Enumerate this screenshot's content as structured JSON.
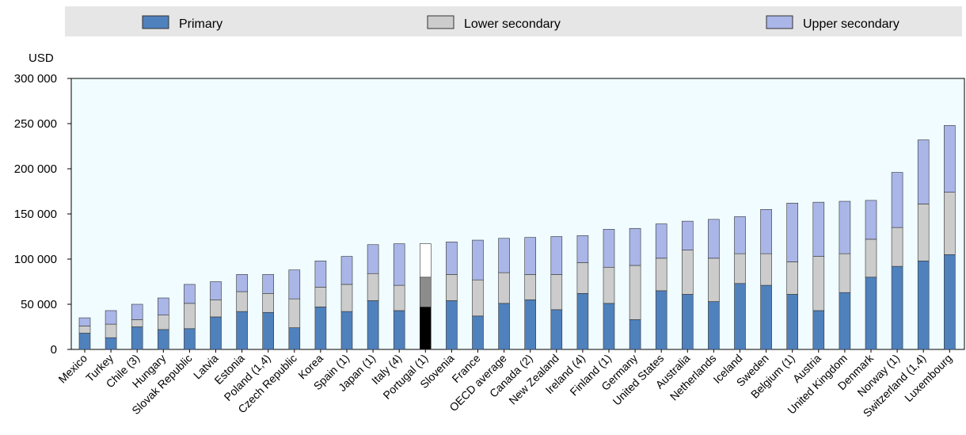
{
  "chart_data": {
    "type": "bar",
    "stacked": true,
    "ylabel": "USD",
    "ylim": [
      0,
      300000
    ],
    "yticks": [
      0,
      50000,
      100000,
      150000,
      200000,
      250000,
      300000
    ],
    "ytick_labels": [
      "0",
      "50 000",
      "100 000",
      "150 000",
      "200 000",
      "250 000",
      "300 000"
    ],
    "grid": false,
    "legend": "top",
    "categories": [
      "Mexico",
      "Turkey",
      "Chile (3)",
      "Hungary",
      "Slovak Republic",
      "Latvia",
      "Estonia",
      "Poland (1,4)",
      "Czech Republic",
      "Korea",
      "Spain (1)",
      "Japan (1)",
      "Italy (4)",
      "Portugal (1)",
      "Slovenia",
      "France",
      "OECD average",
      "Canada (2)",
      "New Zealand",
      "Ireland (4)",
      "Finland (1)",
      "Germany",
      "United States",
      "Australia",
      "Netherlands",
      "Iceland",
      "Sweden",
      "Belgium (1)",
      "Austria",
      "United Kingdom",
      "Denmark",
      "Norway (1)",
      "Switzerland (1,4)",
      "Luxembourg"
    ],
    "series": [
      {
        "name": "Primary",
        "color": "#4f81bd",
        "values": [
          18000,
          13000,
          25000,
          22000,
          23000,
          36000,
          42000,
          41000,
          24000,
          47000,
          42000,
          54000,
          43000,
          47000,
          54000,
          37000,
          51000,
          55000,
          44000,
          62000,
          51000,
          33000,
          65000,
          61000,
          53000,
          73000,
          71000,
          61000,
          43000,
          63000,
          80000,
          92000,
          98000,
          105000
        ]
      },
      {
        "name": "Lower secondary",
        "color": "#cccccc",
        "values": [
          8000,
          15000,
          8000,
          16000,
          28000,
          19000,
          22000,
          21000,
          32000,
          22000,
          30000,
          30000,
          28000,
          33000,
          29000,
          40000,
          34000,
          28000,
          39000,
          34000,
          40000,
          60000,
          36000,
          49000,
          48000,
          33000,
          35000,
          36000,
          60000,
          43000,
          42000,
          43000,
          63000,
          69000
        ]
      },
      {
        "name": "Upper secondary",
        "color": "#aab6e8",
        "values": [
          9000,
          15000,
          17000,
          19000,
          21000,
          20000,
          19000,
          21000,
          32000,
          29000,
          31000,
          32000,
          46000,
          37000,
          36000,
          44000,
          38000,
          41000,
          42000,
          30000,
          42000,
          41000,
          38000,
          32000,
          43000,
          41000,
          49000,
          65000,
          60000,
          58000,
          43000,
          61000,
          71000,
          74000
        ]
      }
    ],
    "highlight": {
      "category_index": 13,
      "colors": [
        "#000000",
        "#8c8c8c",
        "#ffffff"
      ]
    }
  }
}
